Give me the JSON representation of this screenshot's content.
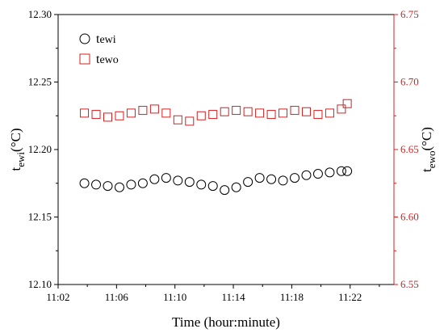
{
  "chart_data": {
    "type": "scatter",
    "title": "",
    "xlabel": "Time (hour:minute)",
    "x_ticks": [
      "11:02",
      "11:06",
      "11:10",
      "11:14",
      "11:18",
      "11:22"
    ],
    "xlim": [
      "11:02",
      "11:25"
    ],
    "y_left": {
      "label_main": "t",
      "label_sub": "ewi",
      "label_unit": "(°C)",
      "ylim": [
        12.1,
        12.3
      ],
      "ticks": [
        "12.10",
        "12.15",
        "12.20",
        "12.25",
        "12.30"
      ],
      "color": "#000000"
    },
    "y_right": {
      "label_main": "t",
      "label_sub": "ewo",
      "label_unit": "(°C)",
      "ylim": [
        6.55,
        6.75
      ],
      "ticks": [
        "6.55",
        "6.60",
        "6.65",
        "6.70",
        "6.75"
      ],
      "color": "#d42020"
    },
    "legend": {
      "placement": "top-left"
    },
    "series": [
      {
        "name": "tewi",
        "name_main": "t",
        "name_sub": "ewi",
        "axis": "left",
        "marker": "circle",
        "color": "#000000",
        "x": [
          "11:03:48",
          "11:04:36",
          "11:05:24",
          "11:06:12",
          "11:07:00",
          "11:07:48",
          "11:08:36",
          "11:09:24",
          "11:10:12",
          "11:11:00",
          "11:11:48",
          "11:12:36",
          "11:13:24",
          "11:14:12",
          "11:15:00",
          "11:15:48",
          "11:16:36",
          "11:17:24",
          "11:18:12",
          "11:19:00",
          "11:19:48",
          "11:20:36",
          "11:21:24",
          "11:21:48"
        ],
        "y": [
          12.175,
          12.174,
          12.173,
          12.172,
          12.174,
          12.175,
          12.178,
          12.179,
          12.177,
          12.176,
          12.174,
          12.173,
          12.17,
          12.172,
          12.176,
          12.179,
          12.178,
          12.177,
          12.179,
          12.181,
          12.182,
          12.183,
          12.184,
          12.184
        ]
      },
      {
        "name": "tewo",
        "name_main": "t",
        "name_sub": "ewo",
        "axis": "right",
        "marker": "square",
        "color": "#d42020",
        "x": [
          "11:03:48",
          "11:04:36",
          "11:05:24",
          "11:06:12",
          "11:07:00",
          "11:07:48",
          "11:08:36",
          "11:09:24",
          "11:10:12",
          "11:11:00",
          "11:11:48",
          "11:12:36",
          "11:13:24",
          "11:14:12",
          "11:15:00",
          "11:15:48",
          "11:16:36",
          "11:17:24",
          "11:18:12",
          "11:19:00",
          "11:19:48",
          "11:20:36",
          "11:21:24",
          "11:21:48"
        ],
        "y": [
          6.677,
          6.676,
          6.674,
          6.675,
          6.677,
          6.679,
          6.68,
          6.677,
          6.672,
          6.671,
          6.675,
          6.676,
          6.678,
          6.679,
          6.678,
          6.677,
          6.676,
          6.677,
          6.679,
          6.678,
          6.676,
          6.677,
          6.68,
          6.684
        ]
      }
    ]
  }
}
